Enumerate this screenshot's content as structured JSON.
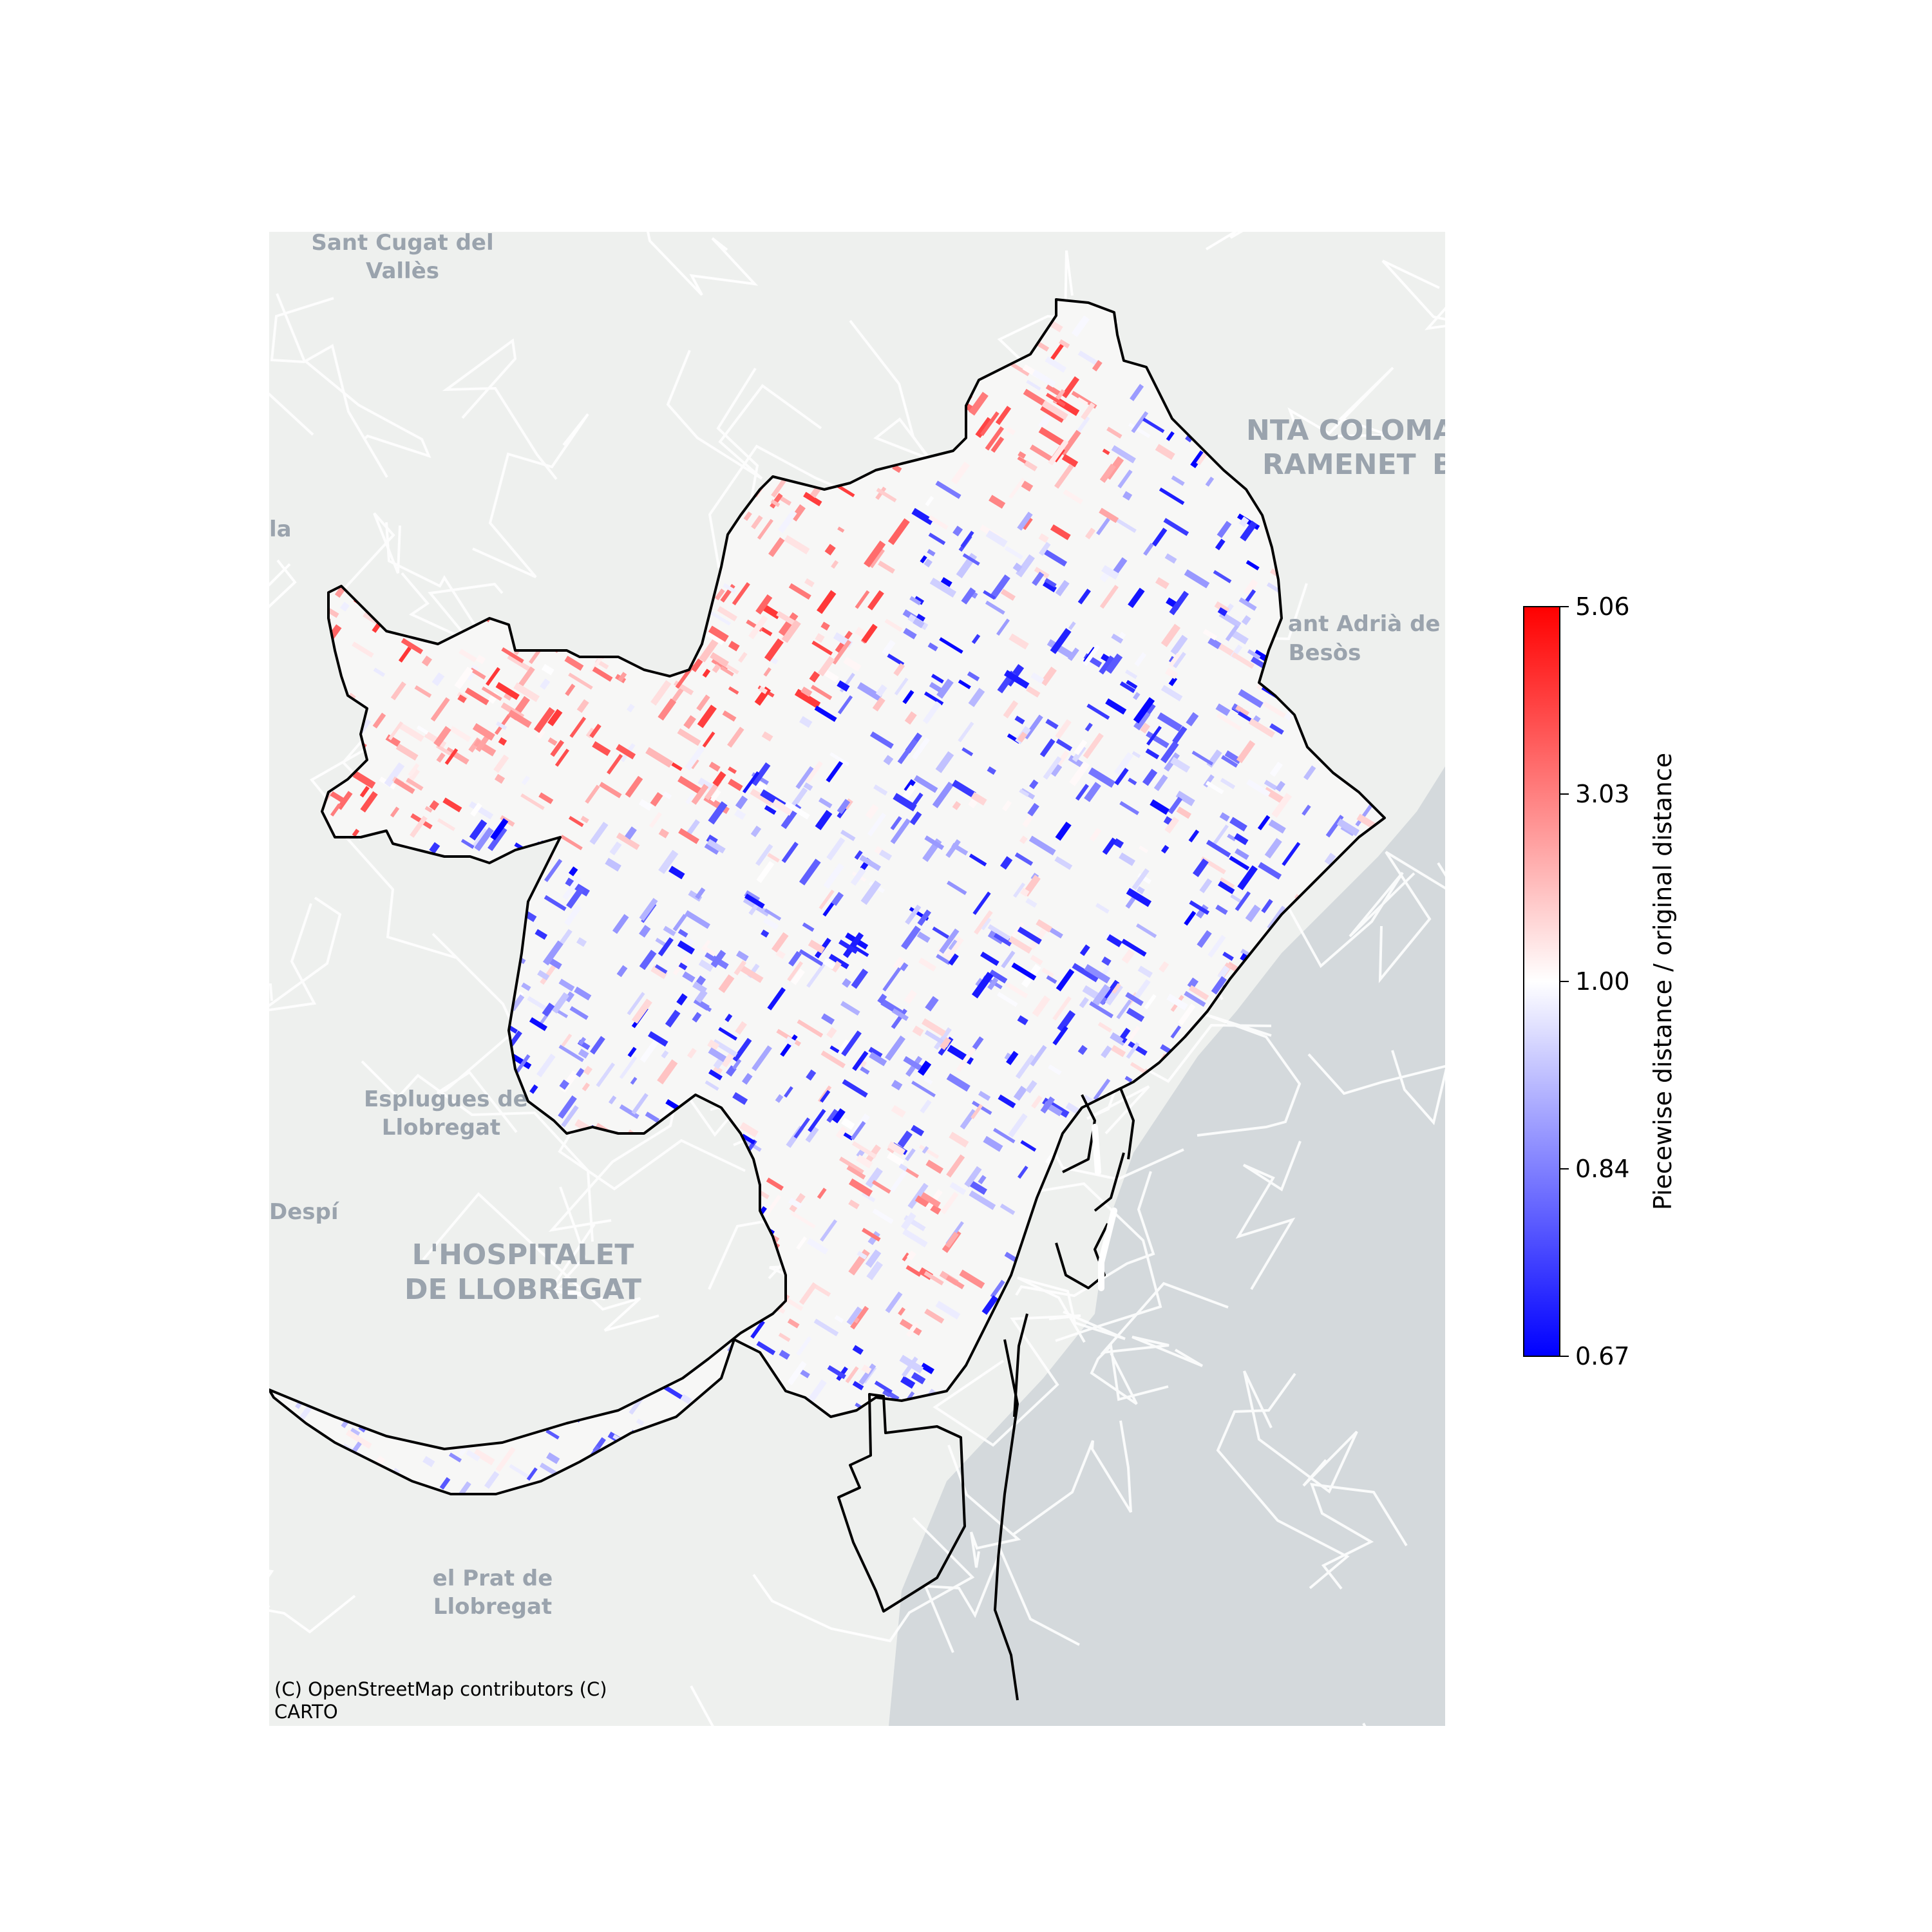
{
  "basemap": {
    "attribution_line1": "(C) OpenStreetMap contributors (C)",
    "attribution_line2": "CARTO",
    "land_color": "#eef0ee",
    "sea_color": "#d4d9dc",
    "place_labels": [
      {
        "id": "sant-cugat-1",
        "text": "Sant Cugat del"
      },
      {
        "id": "sant-cugat-2",
        "text": "Vallès"
      },
      {
        "id": "santa-coloma-1",
        "text": "NTA COLOMA"
      },
      {
        "id": "santa-coloma-2",
        "text": "RAMENET"
      },
      {
        "id": "b-edge",
        "text": "B"
      },
      {
        "id": "la-edge",
        "text": "la"
      },
      {
        "id": "sant-adria-1",
        "text": "ant Adrià de"
      },
      {
        "id": "sant-adria-2",
        "text": "Besòs"
      },
      {
        "id": "esplugues-1",
        "text": "Esplugues de"
      },
      {
        "id": "esplugues-2",
        "text": "Llobregat"
      },
      {
        "id": "despi",
        "text": "Despí"
      },
      {
        "id": "hospitalet-1",
        "text": "L'HOSPITALET"
      },
      {
        "id": "hospitalet-2",
        "text": "DE LLOBREGAT"
      },
      {
        "id": "prat-1",
        "text": "el Prat de"
      },
      {
        "id": "prat-2",
        "text": "Llobregat"
      }
    ]
  },
  "colorbar": {
    "label": "Piecewise distance / original distance",
    "ticks": [
      "5.06",
      "3.03",
      "1.00",
      "0.84",
      "0.67"
    ],
    "tick_values": [
      5.06,
      3.03,
      1.0,
      0.84,
      0.67
    ],
    "colormap": "bwr",
    "colors": [
      "#0000ff",
      "#ffffff",
      "#ff0000"
    ]
  },
  "map": {
    "boundary_color": "#000000",
    "high_ratio_color": "#ff0000",
    "low_ratio_color": "#0000ff"
  }
}
